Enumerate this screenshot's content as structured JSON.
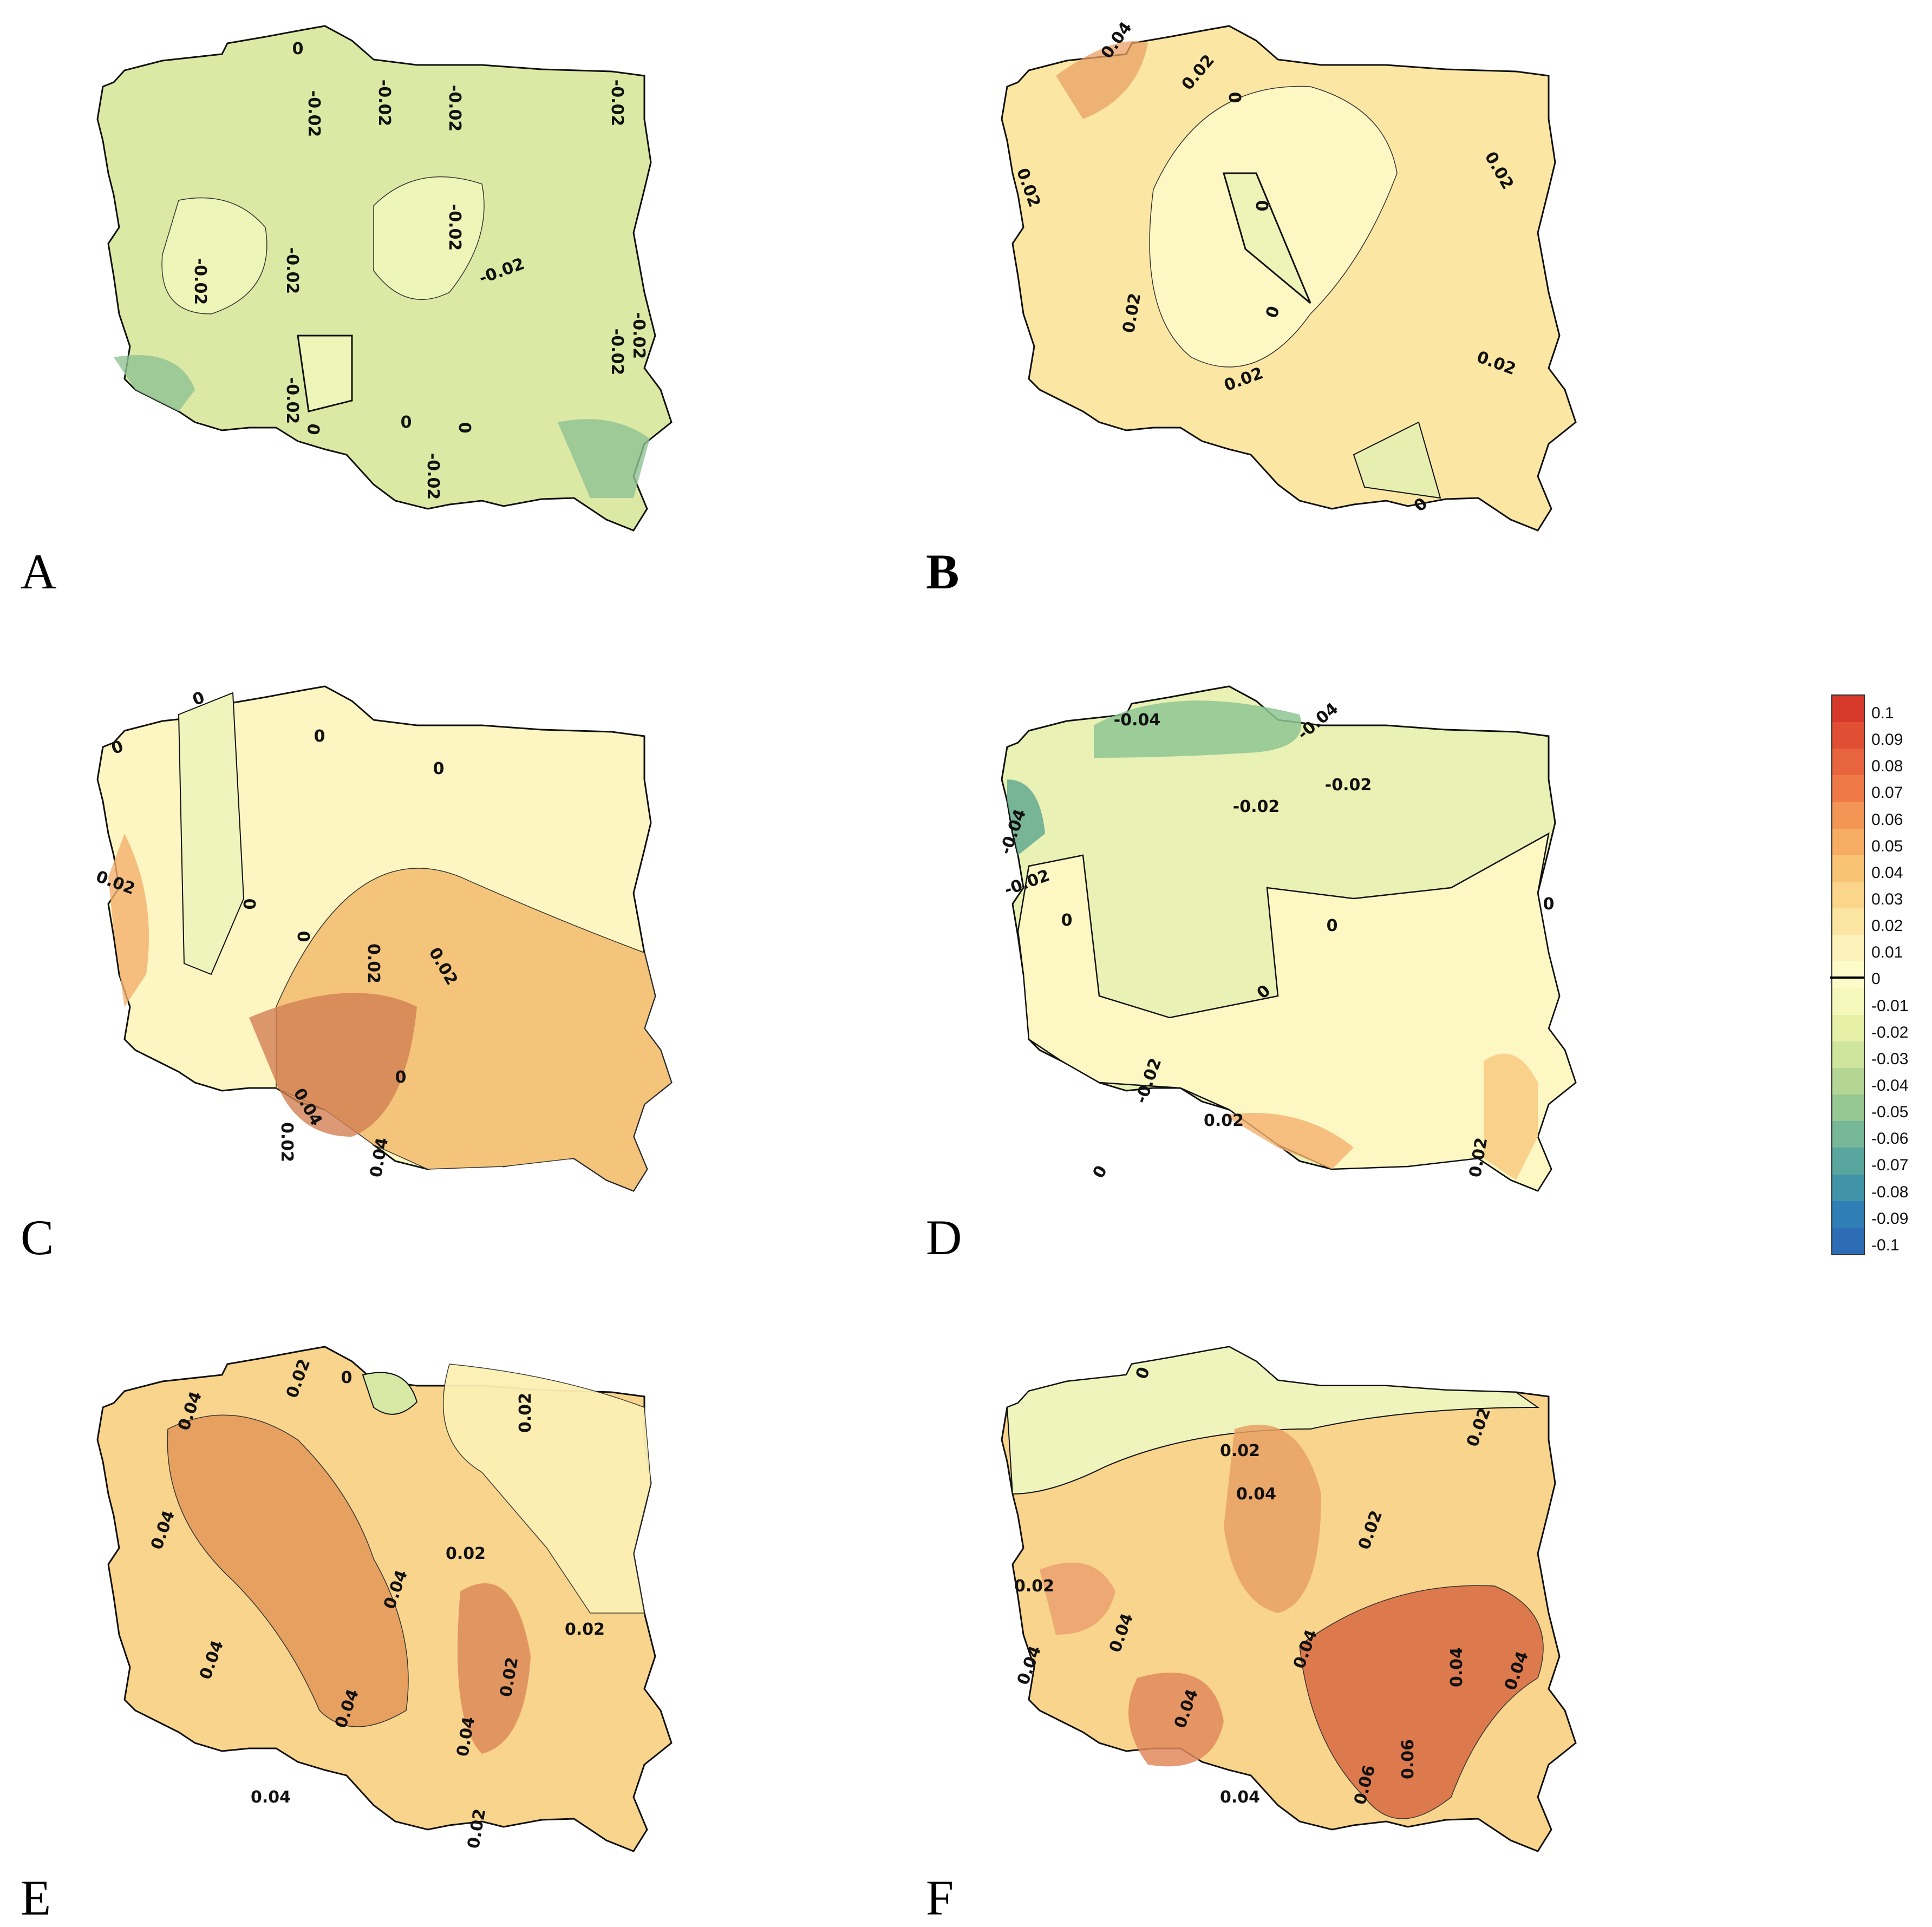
{
  "panels": [
    {
      "letter": "A",
      "fill": "#dce9a4",
      "light": "#eef5b8",
      "labels": [
        "0",
        "-0.02",
        "-0.02",
        "-0.02",
        "-0.02",
        "-0.02",
        "-0.02",
        "-0.02",
        "-0.02",
        "-0.02",
        "-0.02",
        "-0.02",
        "0",
        "0",
        "0",
        "-0.02"
      ]
    },
    {
      "letter": "B",
      "fill": "#fbe6a4",
      "light": "#fdf7c4",
      "labels": [
        "0.04",
        "0.02",
        "0",
        "0.02",
        "0.02",
        "0",
        "0",
        "0.02",
        "0.02",
        "0.02",
        "0"
      ]
    },
    {
      "letter": "C",
      "fill": "#fdf6c2",
      "light": "#f3c47a",
      "labels": [
        "0",
        "0",
        "0",
        "0",
        "0.02",
        "0",
        "0",
        "0.02",
        "0.02",
        "0.04",
        "0.02",
        "0.04",
        "0"
      ]
    },
    {
      "letter": "D",
      "fill": "#e9f1b4",
      "light": "#fdf7c4",
      "labels": [
        "-0.04",
        "-0.04",
        "-0.02",
        "-0.04",
        "-0.02",
        "-0.02",
        "0",
        "0",
        "0",
        "-0.02",
        "0",
        "0",
        "0.02",
        "0.02"
      ]
    },
    {
      "letter": "E",
      "fill": "#f9d48c",
      "light": "#e6a060",
      "labels": [
        "0.02",
        "0",
        "0.02",
        "0.04",
        "0.04",
        "0.02",
        "0.04",
        "0.04",
        "0.04",
        "0.02",
        "0.02",
        "0.02",
        "0.04",
        "0.04"
      ]
    },
    {
      "letter": "F",
      "fill": "#f9d48c",
      "light": "#dc7a4e",
      "labels": [
        "0",
        "0.02",
        "0.02",
        "0.04",
        "0.02",
        "0.02",
        "0.04",
        "0.04",
        "0.04",
        "0.04",
        "0.04",
        "0.06",
        "0.06",
        "0.04",
        "0.04"
      ]
    }
  ],
  "legend": {
    "labels": [
      "0.1",
      "0.09",
      "0.08",
      "0.07",
      "0.06",
      "0.05",
      "0.04",
      "0.03",
      "0.02",
      "0.01",
      "0",
      "-0.01",
      "-0.02",
      "-0.03",
      "-0.04",
      "-0.05",
      "-0.06",
      "-0.07",
      "-0.08",
      "-0.09",
      "-0.1"
    ],
    "colors": [
      "#d73a2a",
      "#e04f33",
      "#e8643e",
      "#ef7a48",
      "#f39554",
      "#f6ac63",
      "#f9c375",
      "#fbd58a",
      "#fce5a1",
      "#fdf3ba",
      "#fefbcb",
      "#f6f8bb",
      "#e6f0a6",
      "#cfe49c",
      "#b3d694",
      "#96c894",
      "#76b898",
      "#58a69d",
      "#4194a7",
      "#2f7fb6",
      "#2c6db6"
    ]
  }
}
